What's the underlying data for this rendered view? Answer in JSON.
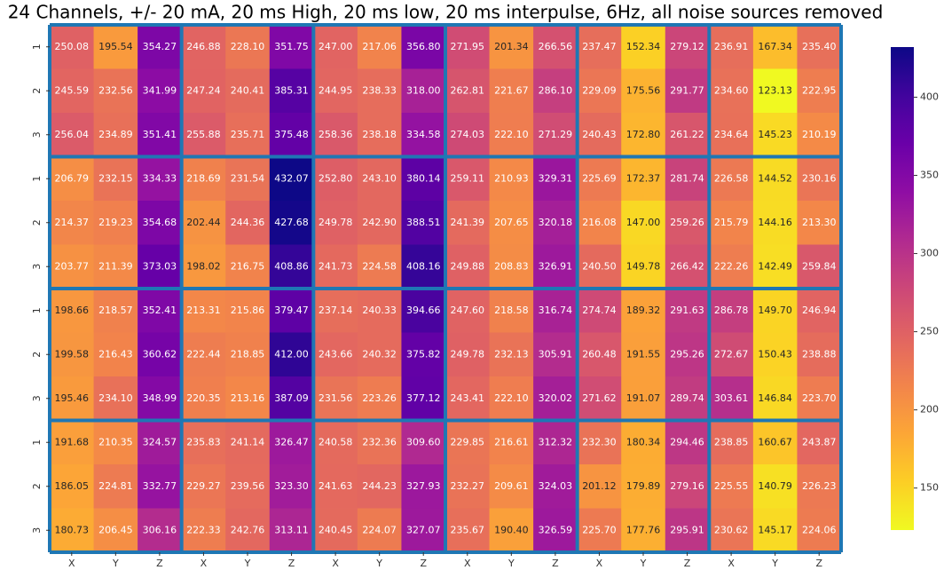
{
  "chart_data": {
    "type": "heatmap",
    "title": "24 Channels, +/- 20 mA, 20 ms High, 20 ms low, 20 ms interpulse, 6Hz, all noise sources removed",
    "x_categories": [
      "X",
      "Y",
      "Z",
      "X",
      "Y",
      "Z",
      "X",
      "Y",
      "Z",
      "X",
      "Y",
      "Z",
      "X",
      "Y",
      "Z",
      "X",
      "Y",
      "Z"
    ],
    "y_categories": [
      "1",
      "2",
      "3",
      "1",
      "2",
      "3",
      "1",
      "2",
      "3",
      "1",
      "2",
      "3"
    ],
    "values": [
      [
        250.08,
        195.54,
        354.27,
        246.88,
        228.1,
        351.75,
        247.0,
        217.06,
        356.8,
        271.95,
        201.34,
        266.56,
        237.47,
        152.34,
        279.12,
        236.91,
        167.34,
        235.4
      ],
      [
        245.59,
        232.56,
        341.99,
        247.24,
        240.41,
        385.31,
        244.95,
        238.33,
        318.0,
        262.81,
        221.67,
        286.1,
        229.09,
        175.56,
        291.77,
        234.6,
        123.13,
        222.95
      ],
      [
        256.04,
        234.89,
        351.41,
        255.88,
        235.71,
        375.48,
        258.36,
        238.18,
        334.58,
        274.03,
        222.1,
        271.29,
        240.43,
        172.8,
        261.22,
        234.64,
        145.23,
        210.19
      ],
      [
        206.79,
        232.15,
        334.33,
        218.69,
        231.54,
        432.07,
        252.8,
        243.1,
        380.14,
        259.11,
        210.93,
        329.31,
        225.69,
        172.37,
        281.74,
        226.58,
        144.52,
        230.16
      ],
      [
        214.37,
        219.23,
        354.68,
        202.44,
        244.36,
        427.68,
        249.78,
        242.9,
        388.51,
        241.39,
        207.65,
        320.18,
        216.08,
        147.0,
        259.26,
        215.79,
        144.16,
        213.3
      ],
      [
        203.77,
        211.39,
        373.03,
        198.02,
        216.75,
        408.86,
        241.73,
        224.58,
        408.16,
        249.88,
        208.83,
        326.91,
        240.5,
        149.78,
        266.42,
        222.26,
        142.49,
        259.84
      ],
      [
        198.66,
        218.57,
        352.41,
        213.31,
        215.86,
        379.47,
        237.14,
        240.33,
        394.66,
        247.6,
        218.58,
        316.74,
        274.74,
        189.32,
        291.63,
        286.78,
        149.7,
        246.94
      ],
      [
        199.58,
        216.43,
        360.62,
        222.44,
        218.85,
        412.0,
        243.66,
        240.32,
        375.82,
        249.78,
        232.13,
        305.91,
        260.48,
        191.55,
        295.26,
        272.67,
        150.43,
        238.88
      ],
      [
        195.46,
        234.1,
        348.99,
        220.35,
        213.16,
        387.09,
        231.56,
        223.26,
        377.12,
        243.41,
        222.1,
        320.02,
        271.62,
        191.07,
        289.74,
        303.61,
        146.84,
        223.7
      ],
      [
        191.68,
        210.35,
        324.57,
        235.83,
        241.14,
        326.47,
        240.58,
        232.36,
        309.6,
        229.85,
        216.61,
        312.32,
        232.3,
        180.34,
        294.46,
        238.85,
        160.67,
        243.87
      ],
      [
        186.05,
        224.81,
        332.77,
        229.27,
        239.56,
        323.3,
        241.63,
        244.23,
        327.93,
        232.27,
        209.61,
        324.03,
        201.12,
        179.89,
        279.16,
        225.55,
        140.79,
        226.23
      ],
      [
        180.73,
        206.45,
        306.16,
        222.33,
        242.76,
        313.11,
        240.45,
        224.07,
        327.07,
        235.67,
        190.4,
        326.59,
        225.7,
        177.76,
        295.91,
        230.62,
        145.17,
        224.06
      ]
    ],
    "value_labels": [
      [
        "250.08",
        "195.54",
        "354.27",
        "246.88",
        "228.10",
        "351.75",
        "247.00",
        "217.06",
        "356.80",
        "271.95",
        "201.34",
        "266.56",
        "237.47",
        "152.34",
        "279.12",
        "236.91",
        "167.34",
        "235.40"
      ],
      [
        "245.59",
        "232.56",
        "341.99",
        "247.24",
        "240.41",
        "385.31",
        "244.95",
        "238.33",
        "318.00",
        "262.81",
        "221.67",
        "286.10",
        "229.09",
        "175.56",
        "291.77",
        "234.60",
        "123.13",
        "222.95"
      ],
      [
        "256.04",
        "234.89",
        "351.41",
        "255.88",
        "235.71",
        "375.48",
        "258.36",
        "238.18",
        "334.58",
        "274.03",
        "222.10",
        "271.29",
        "240.43",
        "172.80",
        "261.22",
        "234.64",
        "145.23",
        "210.19"
      ],
      [
        "206.79",
        "232.15",
        "334.33",
        "218.69",
        "231.54",
        "432.07",
        "252.80",
        "243.10",
        "380.14",
        "259.11",
        "210.93",
        "329.31",
        "225.69",
        "172.37",
        "281.74",
        "226.58",
        "144.52",
        "230.16"
      ],
      [
        "214.37",
        "219.23",
        "354.68",
        "202.44",
        "244.36",
        "427.68",
        "249.78",
        "242.90",
        "388.51",
        "241.39",
        "207.65",
        "320.18",
        "216.08",
        "147.00",
        "259.26",
        "215.79",
        "144.16",
        "213.30"
      ],
      [
        "203.77",
        "211.39",
        "373.03",
        "198.02",
        "216.75",
        "408.86",
        "241.73",
        "224.58",
        "408.16",
        "249.88",
        "208.83",
        "326.91",
        "240.50",
        "149.78",
        "266.42",
        "222.26",
        "142.49",
        "259.84"
      ],
      [
        "198.66",
        "218.57",
        "352.41",
        "213.31",
        "215.86",
        "379.47",
        "237.14",
        "240.33",
        "394.66",
        "247.60",
        "218.58",
        "316.74",
        "274.74",
        "189.32",
        "291.63",
        "286.78",
        "149.70",
        "246.94"
      ],
      [
        "199.58",
        "216.43",
        "360.62",
        "222.44",
        "218.85",
        "412.00",
        "243.66",
        "240.32",
        "375.82",
        "249.78",
        "232.13",
        "305.91",
        "260.48",
        "191.55",
        "295.26",
        "272.67",
        "150.43",
        "238.88"
      ],
      [
        "195.46",
        "234.10",
        "348.99",
        "220.35",
        "213.16",
        "387.09",
        "231.56",
        "223.26",
        "377.12",
        "243.41",
        "222.10",
        "320.02",
        "271.62",
        "191.07",
        "289.74",
        "303.61",
        "146.84",
        "223.70"
      ],
      [
        "191.68",
        "210.35",
        "324.57",
        "235.83",
        "241.14",
        "326.47",
        "240.58",
        "232.36",
        "309.60",
        "229.85",
        "216.61",
        "312.32",
        "232.30",
        "180.34",
        "294.46",
        "238.85",
        "160.67",
        "243.87"
      ],
      [
        "186.05",
        "224.81",
        "332.77",
        "229.27",
        "239.56",
        "323.30",
        "241.63",
        "244.23",
        "327.93",
        "232.27",
        "209.61",
        "324.03",
        "201.12",
        "179.89",
        "279.16",
        "225.55",
        "140.79",
        "226.23"
      ],
      [
        "180.73",
        "206.45",
        "306.16",
        "222.33",
        "242.76",
        "313.11",
        "240.45",
        "224.07",
        "327.07",
        "235.67",
        "190.40",
        "326.59",
        "225.70",
        "177.76",
        "295.91",
        "230.62",
        "145.17",
        "224.06"
      ]
    ],
    "colormap": "plasma_r",
    "clim": [
      123.13,
      432.07
    ],
    "colorbar_ticks": [
      150,
      200,
      250,
      300,
      350,
      400
    ],
    "block_size": 3,
    "block_line_color": "#1f77b4"
  }
}
